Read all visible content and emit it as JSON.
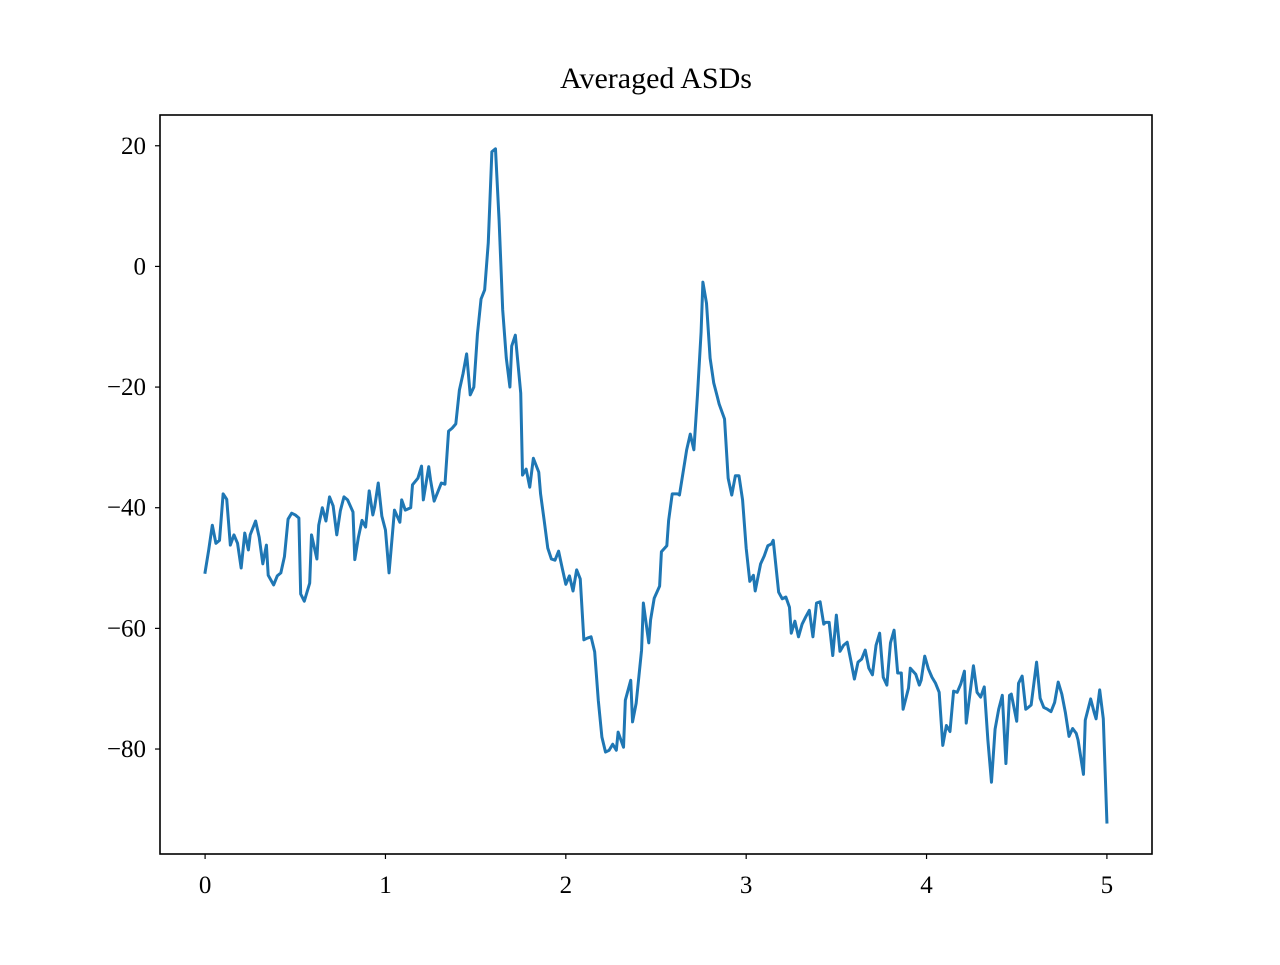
{
  "chart_data": {
    "type": "line",
    "title": "Averaged ASDs",
    "color": "#1f77b4",
    "xlim": [
      -0.25,
      5.25
    ],
    "xticks": [
      0,
      1,
      2,
      3,
      4,
      5
    ],
    "ylim": [
      -97.4,
      25.1
    ],
    "yticks": [
      {
        "value": -80,
        "label": "−80"
      },
      {
        "value": -60,
        "label": "−60"
      },
      {
        "value": -40,
        "label": "−40"
      },
      {
        "value": -20,
        "label": "−20"
      },
      0,
      20
    ],
    "x": [
      0,
      0.02,
      0.04,
      0.06,
      0.08,
      0.1,
      0.12,
      0.14,
      0.16,
      0.18,
      0.2,
      0.22,
      0.24,
      0.25,
      0.28,
      0.3,
      0.32,
      0.34,
      0.35,
      0.38,
      0.4,
      0.42,
      0.44,
      0.46,
      0.48,
      0.5,
      0.52,
      0.53,
      0.55,
      0.58,
      0.59,
      0.62,
      0.63,
      0.65,
      0.67,
      0.69,
      0.71,
      0.73,
      0.75,
      0.77,
      0.79,
      0.82,
      0.83,
      0.85,
      0.87,
      0.89,
      0.91,
      0.93,
      0.94,
      0.96,
      0.98,
      1.0,
      1.02,
      1.04,
      1.05,
      1.08,
      1.09,
      1.11,
      1.14,
      1.15,
      1.18,
      1.2,
      1.21,
      1.24,
      1.25,
      1.27,
      1.29,
      1.31,
      1.33,
      1.35,
      1.37,
      1.39,
      1.41,
      1.43,
      1.45,
      1.47,
      1.49,
      1.51,
      1.53,
      1.55,
      1.57,
      1.59,
      1.61,
      1.63,
      1.65,
      1.67,
      1.69,
      1.7,
      1.72,
      1.75,
      1.76,
      1.78,
      1.8,
      1.82,
      1.85,
      1.86,
      1.88,
      1.9,
      1.92,
      1.94,
      1.96,
      1.98,
      2.0,
      2.02,
      2.04,
      2.06,
      2.08,
      2.1,
      2.12,
      2.14,
      2.16,
      2.18,
      2.2,
      2.22,
      2.24,
      2.26,
      2.28,
      2.29,
      2.32,
      2.33,
      2.36,
      2.37,
      2.39,
      2.42,
      2.43,
      2.46,
      2.47,
      2.49,
      2.52,
      2.53,
      2.56,
      2.57,
      2.59,
      2.62,
      2.63,
      2.66,
      2.67,
      2.69,
      2.71,
      2.73,
      2.75,
      2.76,
      2.78,
      2.8,
      2.82,
      2.84,
      2.85,
      2.88,
      2.9,
      2.92,
      2.94,
      2.96,
      2.98,
      3.0,
      3.02,
      3.04,
      3.05,
      3.08,
      3.1,
      3.12,
      3.14,
      3.15,
      3.18,
      3.2,
      3.22,
      3.24,
      3.25,
      3.27,
      3.29,
      3.31,
      3.33,
      3.35,
      3.37,
      3.39,
      3.41,
      3.43,
      3.44,
      3.46,
      3.48,
      3.5,
      3.52,
      3.54,
      3.56,
      3.58,
      3.6,
      3.62,
      3.64,
      3.66,
      3.68,
      3.7,
      3.72,
      3.74,
      3.76,
      3.78,
      3.8,
      3.82,
      3.84,
      3.86,
      3.87,
      3.9,
      3.91,
      3.94,
      3.96,
      3.97,
      3.99,
      4.01,
      4.03,
      4.05,
      4.07,
      4.09,
      4.11,
      4.13,
      4.15,
      4.17,
      4.19,
      4.21,
      4.22,
      4.25,
      4.26,
      4.28,
      4.3,
      4.32,
      4.34,
      4.36,
      4.38,
      4.4,
      4.42,
      4.44,
      4.46,
      4.47,
      4.5,
      4.51,
      4.53,
      4.55,
      4.56,
      4.58,
      4.61,
      4.63,
      4.65,
      4.67,
      4.69,
      4.71,
      4.73,
      4.75,
      4.77,
      4.79,
      4.81,
      4.83,
      4.84,
      4.87,
      4.88,
      4.91,
      4.93,
      4.94,
      4.96,
      4.98,
      5.0
    ],
    "values": [
      -50.7,
      -47.0,
      -42.9,
      -45.9,
      -45.4,
      -37.7,
      -38.6,
      -46.2,
      -44.5,
      -45.9,
      -50.0,
      -44.2,
      -47.0,
      -44.5,
      -42.2,
      -44.9,
      -49.3,
      -46.2,
      -51.2,
      -52.8,
      -51.3,
      -50.8,
      -48.1,
      -41.9,
      -40.9,
      -41.2,
      -41.7,
      -54.3,
      -55.5,
      -52.5,
      -44.5,
      -48.5,
      -42.9,
      -40.0,
      -42.2,
      -38.2,
      -39.7,
      -44.5,
      -40.5,
      -38.2,
      -38.7,
      -40.7,
      -48.6,
      -44.9,
      -42.1,
      -43.2,
      -37.2,
      -41.2,
      -39.9,
      -35.9,
      -41.4,
      -43.7,
      -50.8,
      -43.9,
      -40.4,
      -42.4,
      -38.7,
      -40.4,
      -40.0,
      -36.2,
      -35.1,
      -33.1,
      -38.7,
      -33.2,
      -35.4,
      -38.9,
      -37.4,
      -35.9,
      -36.1,
      -27.3,
      -26.8,
      -26.1,
      -20.5,
      -17.8,
      -14.5,
      -21.3,
      -20.0,
      -11.2,
      -5.4,
      -3.9,
      3.9,
      19.0,
      19.5,
      7.7,
      -7.2,
      -15.2,
      -20.0,
      -13.2,
      -11.4,
      -21.0,
      -34.6,
      -33.6,
      -36.6,
      -31.8,
      -34.1,
      -37.7,
      -42.1,
      -46.7,
      -48.5,
      -48.7,
      -47.2,
      -50.0,
      -52.7,
      -51.3,
      -53.8,
      -50.3,
      -51.8,
      -61.9,
      -61.6,
      -61.4,
      -63.9,
      -71.9,
      -78.0,
      -80.5,
      -80.2,
      -79.2,
      -80.2,
      -77.2,
      -79.7,
      -71.9,
      -68.6,
      -75.5,
      -72.4,
      -63.6,
      -55.8,
      -62.4,
      -58.6,
      -55.0,
      -53.0,
      -47.3,
      -46.3,
      -42.1,
      -37.7,
      -37.7,
      -37.9,
      -32.3,
      -30.4,
      -27.8,
      -30.4,
      -21.3,
      -10.9,
      -2.6,
      -6.1,
      -15.2,
      -19.3,
      -21.6,
      -22.8,
      -25.3,
      -35.1,
      -37.9,
      -34.7,
      -34.7,
      -38.7,
      -46.7,
      -52.2,
      -51.2,
      -53.8,
      -49.3,
      -48.0,
      -46.3,
      -46.0,
      -45.4,
      -54.0,
      -55.1,
      -54.8,
      -56.5,
      -60.8,
      -58.8,
      -61.4,
      -59.3,
      -58.1,
      -57.0,
      -61.4,
      -55.8,
      -55.6,
      -59.3,
      -59.0,
      -59.0,
      -64.5,
      -57.8,
      -63.8,
      -62.8,
      -62.3,
      -65.3,
      -68.4,
      -65.6,
      -65.1,
      -63.6,
      -66.6,
      -67.7,
      -62.8,
      -60.8,
      -68.1,
      -69.4,
      -62.4,
      -60.3,
      -67.4,
      -67.4,
      -73.4,
      -69.9,
      -66.6,
      -67.6,
      -69.4,
      -68.6,
      -64.6,
      -66.7,
      -68.1,
      -69.1,
      -70.6,
      -79.4,
      -76.1,
      -77.1,
      -70.4,
      -70.6,
      -69.2,
      -67.1,
      -75.7,
      -68.6,
      -66.2,
      -70.6,
      -71.4,
      -69.7,
      -78.5,
      -85.5,
      -76.7,
      -73.4,
      -71.1,
      -82.4,
      -71.1,
      -70.9,
      -75.4,
      -69.1,
      -67.9,
      -73.4,
      -73.2,
      -72.7,
      -65.6,
      -71.6,
      -73.1,
      -73.4,
      -73.8,
      -72.3,
      -68.9,
      -70.9,
      -74.0,
      -77.9,
      -76.6,
      -77.4,
      -78.5,
      -84.2,
      -75.2,
      -71.7,
      -74.0,
      -75.0,
      -70.2,
      -75.0,
      -92.1
    ]
  }
}
